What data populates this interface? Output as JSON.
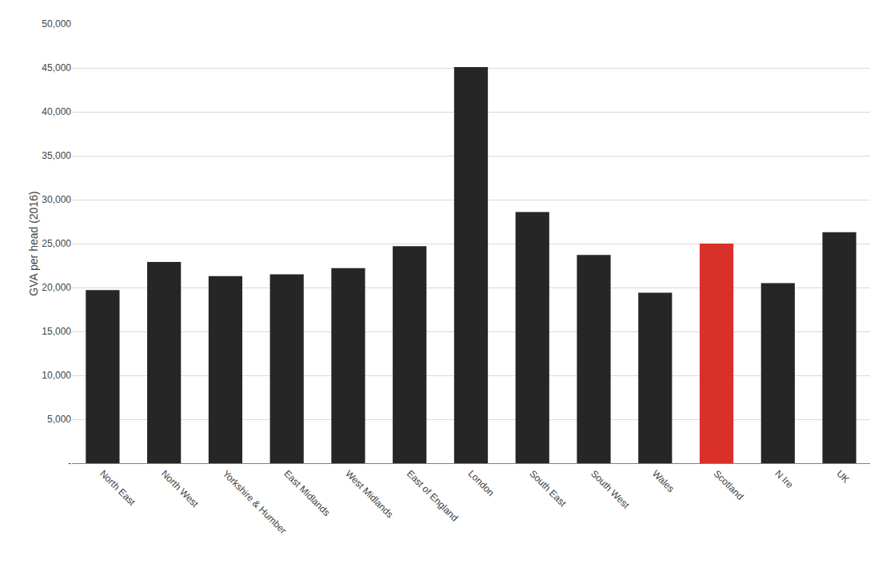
{
  "chart_data": {
    "type": "bar",
    "ylabel": "GVA per head (2016)",
    "categories": [
      "North East",
      "North West",
      "Yorkshire & Humber",
      "East Midlands",
      "West Midlands",
      "East of England",
      "London",
      "South East",
      "South West",
      "Wales",
      "Scotland",
      "N Ire",
      "UK"
    ],
    "values": [
      19700,
      22900,
      21300,
      21500,
      22200,
      24700,
      45100,
      28600,
      23700,
      19400,
      25000,
      20500,
      26300
    ],
    "colors": [
      "#262626",
      "#262626",
      "#262626",
      "#262626",
      "#262626",
      "#262626",
      "#262626",
      "#262626",
      "#262626",
      "#262626",
      "#d9302a",
      "#262626",
      "#262626"
    ],
    "ylim": [
      0,
      50000
    ],
    "yticks": [
      {
        "value": 0,
        "label": "-"
      },
      {
        "value": 5000,
        "label": "5,000"
      },
      {
        "value": 10000,
        "label": "10,000"
      },
      {
        "value": 15000,
        "label": "15,000"
      },
      {
        "value": 20000,
        "label": "20,000"
      },
      {
        "value": 25000,
        "label": "25,000"
      },
      {
        "value": 30000,
        "label": "30,000"
      },
      {
        "value": 35000,
        "label": "35,000"
      },
      {
        "value": 40000,
        "label": "40,000"
      },
      {
        "value": 45000,
        "label": "45,000"
      },
      {
        "value": 50000,
        "label": "50,000"
      }
    ],
    "grid": true
  }
}
